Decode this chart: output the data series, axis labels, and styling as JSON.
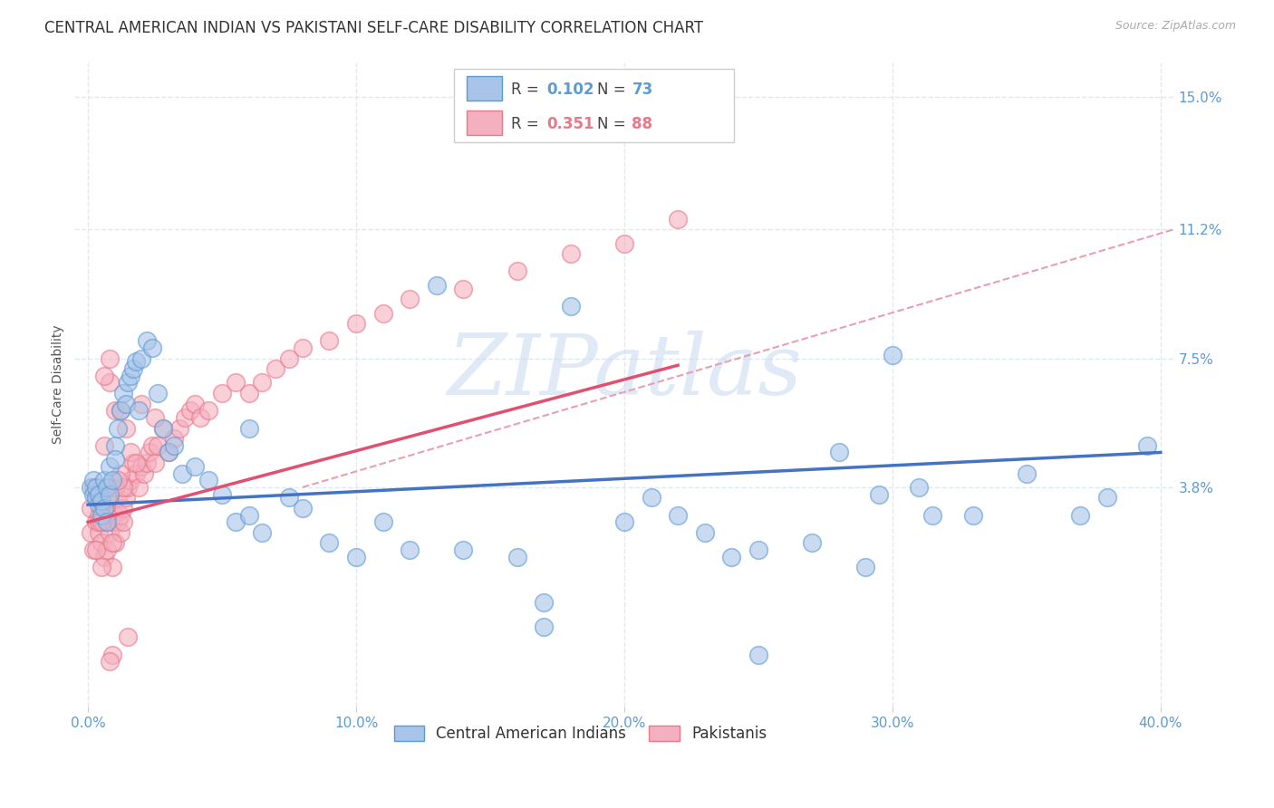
{
  "title": "CENTRAL AMERICAN INDIAN VS PAKISTANI SELF-CARE DISABILITY CORRELATION CHART",
  "source": "Source: ZipAtlas.com",
  "ylabel": "Self-Care Disability",
  "xlim": [
    -0.005,
    0.405
  ],
  "ylim": [
    -0.025,
    0.16
  ],
  "xticks": [
    0.0,
    0.1,
    0.2,
    0.3,
    0.4
  ],
  "xticklabels": [
    "0.0%",
    "10.0%",
    "20.0%",
    "30.0%",
    "40.0%"
  ],
  "yticks": [
    0.038,
    0.075,
    0.112,
    0.15
  ],
  "yticklabels": [
    "3.8%",
    "7.5%",
    "11.2%",
    "15.0%"
  ],
  "blue_label": "Central American Indians",
  "pink_label": "Pakistanis",
  "blue_R": "0.102",
  "blue_N": "73",
  "pink_R": "0.351",
  "pink_N": "88",
  "blue_color": "#a8c4e8",
  "pink_color": "#f5b0bf",
  "blue_edge": "#5b9bd5",
  "pink_edge": "#e8788a",
  "blue_line_color": "#4472c4",
  "pink_line_color": "#e05070",
  "dash_color": "#e8a0b0",
  "background_color": "#ffffff",
  "grid_color": "#dde8f0",
  "tick_color": "#5b9bd5",
  "title_fontsize": 12,
  "axis_label_fontsize": 10,
  "tick_fontsize": 11,
  "blue_scatter_x": [
    0.001,
    0.002,
    0.002,
    0.003,
    0.003,
    0.004,
    0.004,
    0.005,
    0.005,
    0.006,
    0.006,
    0.007,
    0.007,
    0.008,
    0.008,
    0.009,
    0.01,
    0.01,
    0.011,
    0.012,
    0.013,
    0.014,
    0.015,
    0.016,
    0.017,
    0.018,
    0.019,
    0.02,
    0.022,
    0.024,
    0.026,
    0.028,
    0.03,
    0.032,
    0.035,
    0.04,
    0.045,
    0.05,
    0.055,
    0.06,
    0.065,
    0.075,
    0.08,
    0.09,
    0.1,
    0.11,
    0.12,
    0.14,
    0.16,
    0.17,
    0.18,
    0.2,
    0.21,
    0.22,
    0.23,
    0.24,
    0.25,
    0.27,
    0.29,
    0.3,
    0.31,
    0.33,
    0.35,
    0.37,
    0.38,
    0.395,
    0.17,
    0.28,
    0.295,
    0.315,
    0.25,
    0.06,
    0.13
  ],
  "blue_scatter_y": [
    0.038,
    0.036,
    0.04,
    0.035,
    0.038,
    0.033,
    0.036,
    0.03,
    0.034,
    0.032,
    0.04,
    0.038,
    0.028,
    0.036,
    0.044,
    0.04,
    0.05,
    0.046,
    0.055,
    0.06,
    0.065,
    0.062,
    0.068,
    0.07,
    0.072,
    0.074,
    0.06,
    0.075,
    0.08,
    0.078,
    0.065,
    0.055,
    0.048,
    0.05,
    0.042,
    0.044,
    0.04,
    0.036,
    0.028,
    0.03,
    0.025,
    0.035,
    0.032,
    0.022,
    0.018,
    0.028,
    0.02,
    0.02,
    0.018,
    -0.002,
    0.09,
    0.028,
    0.035,
    0.03,
    0.025,
    0.018,
    0.02,
    0.022,
    0.015,
    0.076,
    0.038,
    0.03,
    0.042,
    0.03,
    0.035,
    0.05,
    0.005,
    0.048,
    0.036,
    0.03,
    -0.01,
    0.055,
    0.096
  ],
  "pink_scatter_x": [
    0.001,
    0.001,
    0.002,
    0.002,
    0.003,
    0.003,
    0.004,
    0.004,
    0.005,
    0.005,
    0.006,
    0.006,
    0.007,
    0.007,
    0.008,
    0.008,
    0.009,
    0.009,
    0.01,
    0.01,
    0.011,
    0.011,
    0.012,
    0.012,
    0.013,
    0.013,
    0.014,
    0.015,
    0.016,
    0.017,
    0.018,
    0.019,
    0.02,
    0.021,
    0.022,
    0.023,
    0.024,
    0.025,
    0.026,
    0.028,
    0.03,
    0.032,
    0.034,
    0.036,
    0.038,
    0.04,
    0.042,
    0.045,
    0.05,
    0.055,
    0.06,
    0.065,
    0.07,
    0.075,
    0.08,
    0.09,
    0.1,
    0.11,
    0.12,
    0.14,
    0.16,
    0.18,
    0.2,
    0.22,
    0.004,
    0.006,
    0.008,
    0.01,
    0.012,
    0.014,
    0.016,
    0.018,
    0.02,
    0.008,
    0.01,
    0.012,
    0.003,
    0.005,
    0.007,
    0.025,
    0.015,
    0.009,
    0.013,
    0.006,
    0.011,
    0.009,
    0.008,
    0.005
  ],
  "pink_scatter_y": [
    0.032,
    0.025,
    0.038,
    0.02,
    0.028,
    0.035,
    0.025,
    0.03,
    0.022,
    0.032,
    0.028,
    0.018,
    0.03,
    0.02,
    0.035,
    0.025,
    0.028,
    0.015,
    0.03,
    0.022,
    0.028,
    0.035,
    0.03,
    0.025,
    0.032,
    0.028,
    0.035,
    0.038,
    0.04,
    0.045,
    0.042,
    0.038,
    0.044,
    0.042,
    0.045,
    0.048,
    0.05,
    0.045,
    0.05,
    0.055,
    0.048,
    0.052,
    0.055,
    0.058,
    0.06,
    0.062,
    0.058,
    0.06,
    0.065,
    0.068,
    0.065,
    0.068,
    0.072,
    0.075,
    0.078,
    0.08,
    0.085,
    0.088,
    0.092,
    0.095,
    0.1,
    0.105,
    0.108,
    0.115,
    0.028,
    0.05,
    0.068,
    0.06,
    0.06,
    0.055,
    0.048,
    0.045,
    0.062,
    0.075,
    0.038,
    0.042,
    0.02,
    0.028,
    0.035,
    0.058,
    -0.005,
    0.022,
    0.038,
    0.07,
    0.04,
    -0.01,
    -0.012,
    0.015
  ],
  "blue_line_start_x": 0.0,
  "blue_line_start_y": 0.033,
  "blue_line_end_x": 0.4,
  "blue_line_end_y": 0.048,
  "pink_line_start_x": 0.0,
  "pink_line_start_y": 0.028,
  "pink_line_end_x": 0.22,
  "pink_line_end_y": 0.073,
  "dash_line_start_x": 0.08,
  "dash_line_start_y": 0.038,
  "dash_line_end_x": 0.405,
  "dash_line_end_y": 0.112,
  "watermark": "ZIPatlas"
}
